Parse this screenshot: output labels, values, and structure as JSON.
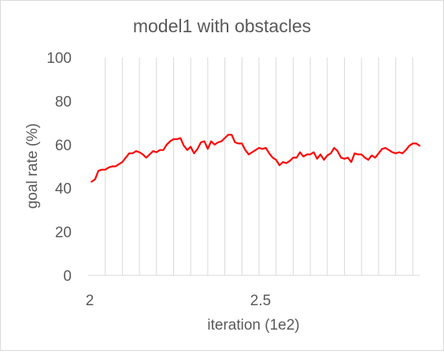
{
  "chart_data": {
    "type": "line",
    "title": "model1 with obstacles",
    "xlabel": "iteration (1e2)",
    "ylabel": "goal rate (%)",
    "xlim": [
      2.0,
      2.97
    ],
    "ylim": [
      0,
      100
    ],
    "y_ticks": [
      "0",
      "20",
      "40",
      "60",
      "80",
      "100"
    ],
    "x_ticks": [
      {
        "value": 2.0,
        "label": "2"
      },
      {
        "value": 2.5,
        "label": "2.5"
      }
    ],
    "grid": "vertical",
    "legend": "none",
    "series": [
      {
        "color": "#ff0000",
        "x": [
          2.01,
          2.02,
          2.03,
          2.04,
          2.05,
          2.06,
          2.07,
          2.08,
          2.09,
          2.1,
          2.11,
          2.12,
          2.13,
          2.14,
          2.15,
          2.16,
          2.17,
          2.18,
          2.19,
          2.2,
          2.21,
          2.22,
          2.23,
          2.24,
          2.25,
          2.26,
          2.27,
          2.28,
          2.29,
          2.3,
          2.31,
          2.32,
          2.33,
          2.34,
          2.35,
          2.36,
          2.37,
          2.38,
          2.39,
          2.4,
          2.41,
          2.42,
          2.43,
          2.44,
          2.45,
          2.46,
          2.47,
          2.48,
          2.49,
          2.5,
          2.51,
          2.52,
          2.53,
          2.54,
          2.55,
          2.56,
          2.57,
          2.58,
          2.59,
          2.6,
          2.61,
          2.62,
          2.63,
          2.64,
          2.65,
          2.66,
          2.67,
          2.68,
          2.69,
          2.7,
          2.71,
          2.72,
          2.73,
          2.74,
          2.75,
          2.76,
          2.77,
          2.78,
          2.79,
          2.8,
          2.81,
          2.82,
          2.83,
          2.84,
          2.85,
          2.86,
          2.87,
          2.88,
          2.89,
          2.9,
          2.91,
          2.92,
          2.93,
          2.94,
          2.95,
          2.96,
          2.97
        ],
        "values": [
          43,
          44,
          48,
          48.5,
          48.5,
          49.5,
          50,
          50,
          51,
          52,
          54,
          56,
          56,
          57,
          56.5,
          55.5,
          54,
          55.5,
          57,
          56.5,
          57.5,
          57.5,
          60,
          61.5,
          62.5,
          62.5,
          63,
          59.5,
          57.5,
          59,
          56,
          58,
          61,
          61.5,
          58,
          61.5,
          60,
          61,
          61.5,
          63,
          64.5,
          64.5,
          61,
          60.5,
          60.5,
          57.5,
          55.5,
          56.5,
          57.5,
          58.5,
          58,
          58.5,
          56,
          54,
          53,
          50.5,
          52,
          51.5,
          52.5,
          54,
          54,
          56.5,
          54.5,
          55.5,
          55.5,
          56.5,
          53.5,
          55.5,
          53,
          55,
          56,
          58.5,
          57,
          54,
          53.5,
          54,
          52,
          56,
          55.5,
          55.5,
          54,
          53,
          55,
          54,
          56,
          58,
          58.5,
          57.5,
          56.5,
          56,
          56.5,
          56,
          57.5,
          59.5,
          60.5,
          60.5,
          59.5
        ]
      }
    ]
  }
}
